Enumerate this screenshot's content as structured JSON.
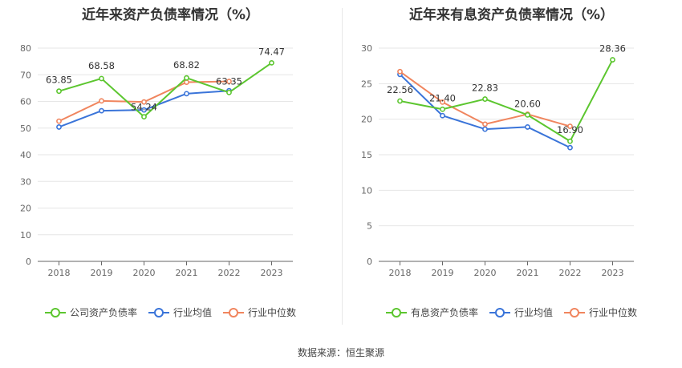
{
  "source": "数据来源：恒生聚源",
  "chart_data": [
    {
      "type": "line",
      "title": "近年来资产负债率情况（%）",
      "x": [
        "2018",
        "2019",
        "2020",
        "2021",
        "2022",
        "2023"
      ],
      "ylim": [
        0,
        80
      ],
      "yticks": [
        0,
        10,
        20,
        30,
        40,
        50,
        60,
        70,
        80
      ],
      "grid": true,
      "legend_position": "bottom",
      "series": [
        {
          "name": "公司资产负债率",
          "color": "#5cc62f",
          "values": [
            63.85,
            68.58,
            54.24,
            68.82,
            63.35,
            74.47
          ],
          "labels": [
            "63.85",
            "68.58",
            "54.24",
            "68.82",
            "63.35",
            "74.47"
          ]
        },
        {
          "name": "行业均值",
          "color": "#3a74d9",
          "values": [
            50.4,
            56.5,
            56.8,
            62.9,
            64.0,
            null
          ],
          "labels": []
        },
        {
          "name": "行业中位数",
          "color": "#f0855e",
          "values": [
            52.6,
            60.2,
            59.8,
            67.2,
            67.5,
            null
          ],
          "labels": []
        }
      ]
    },
    {
      "type": "line",
      "title": "近年来有息资产负债率情况（%）",
      "x": [
        "2018",
        "2019",
        "2020",
        "2021",
        "2022",
        "2023"
      ],
      "ylim": [
        0,
        30
      ],
      "yticks": [
        0,
        5,
        10,
        15,
        20,
        25,
        30
      ],
      "grid": true,
      "legend_position": "bottom",
      "series": [
        {
          "name": "有息资产负债率",
          "color": "#5cc62f",
          "values": [
            22.56,
            21.4,
            22.83,
            20.6,
            16.9,
            28.36
          ],
          "labels": [
            "22.56",
            "21.40",
            "22.83",
            "20.60",
            "16.90",
            "28.36"
          ]
        },
        {
          "name": "行业均值",
          "color": "#3a74d9",
          "values": [
            26.3,
            20.5,
            18.6,
            18.9,
            16.0,
            null
          ],
          "labels": []
        },
        {
          "name": "行业中位数",
          "color": "#f0855e",
          "values": [
            26.7,
            22.4,
            19.3,
            20.7,
            19.0,
            null
          ],
          "labels": []
        }
      ]
    }
  ]
}
